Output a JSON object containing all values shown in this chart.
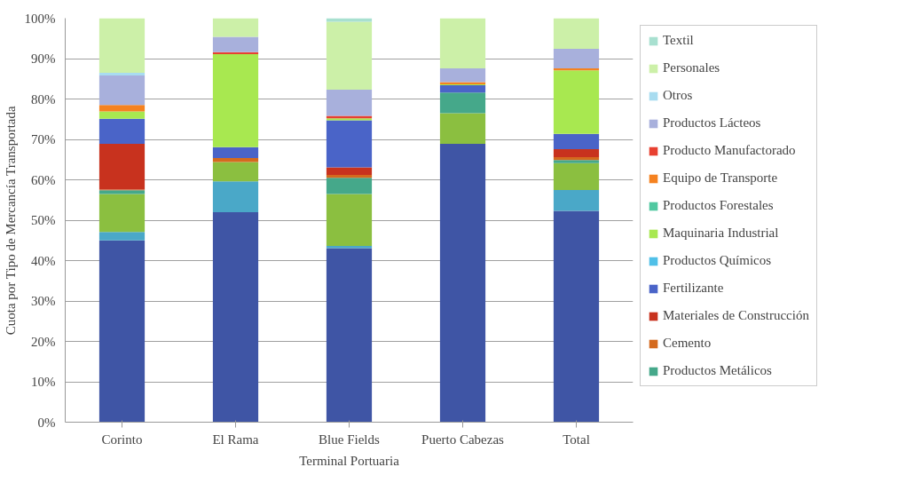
{
  "chart_data": {
    "type": "bar",
    "stacked": true,
    "xlabel": "Terminal Portuaria",
    "ylabel": "Cuota por Tipo de Mercancía Transportada",
    "categories": [
      "Corinto",
      "El Rama",
      "Blue Fields",
      "Puerto Cabezas",
      "Total"
    ],
    "ylim": [
      0,
      100
    ],
    "yticks": [
      {
        "value": 0,
        "label": "0%"
      },
      {
        "value": 10,
        "label": "10%"
      },
      {
        "value": 20,
        "label": "20%"
      },
      {
        "value": 30,
        "label": "30%"
      },
      {
        "value": 40,
        "label": "40%"
      },
      {
        "value": 50,
        "label": "50%"
      },
      {
        "value": 60,
        "label": "60%"
      },
      {
        "value": 70,
        "label": "70%"
      },
      {
        "value": 80,
        "label": "80%"
      },
      {
        "value": 90,
        "label": "90%"
      },
      {
        "value": 100,
        "label": "100%"
      }
    ],
    "grid": "y",
    "legend": "right",
    "series": [
      {
        "color": "#3f55a5",
        "values": [
          45.0,
          52.0,
          43.1,
          68.9,
          52.3
        ]
      },
      {
        "color": "#4aa8c8",
        "values": [
          2.1,
          7.6,
          0.5,
          0,
          5.2
        ]
      },
      {
        "color": "#8bbf40",
        "values": [
          9.4,
          4.8,
          12.9,
          7.6,
          6.6
        ]
      },
      {
        "name": "Productos Metálicos",
        "color": "#45a88a",
        "values": [
          0.9,
          0,
          4.0,
          5.1,
          0.8
        ]
      },
      {
        "name": "Cemento",
        "color": "#d46a1e",
        "values": [
          0.2,
          1.0,
          0.7,
          0,
          0.7
        ]
      },
      {
        "name": "Materiales de Construcción",
        "color": "#c8321e",
        "values": [
          11.3,
          0,
          1.9,
          0,
          2.0
        ]
      },
      {
        "name": "Fertilizante",
        "color": "#4a64c8",
        "values": [
          6.2,
          2.7,
          11.6,
          1.8,
          3.8
        ]
      },
      {
        "name": "Productos Químicos",
        "color": "#50c0e8",
        "values": [
          0,
          0,
          0,
          0,
          0
        ]
      },
      {
        "name": "Maquinaria Industrial",
        "color": "#a8e850",
        "values": [
          1.8,
          23.0,
          0.5,
          0.2,
          15.7
        ]
      },
      {
        "name": "Productos Forestales",
        "color": "#50c8a0",
        "values": [
          0,
          0,
          0,
          0,
          0
        ]
      },
      {
        "name": "Equipo de Transporte",
        "color": "#f58220",
        "values": [
          1.6,
          0,
          0,
          0.6,
          0.5
        ]
      },
      {
        "name": "Producto Manufactorado",
        "color": "#e84030",
        "values": [
          0,
          0.5,
          0.6,
          0,
          0
        ]
      },
      {
        "name": "Productos Lácteos",
        "color": "#a8b0dc",
        "values": [
          7.3,
          3.8,
          6.5,
          3.4,
          4.8
        ]
      },
      {
        "name": "Otros",
        "color": "#a8dcf0",
        "values": [
          0.7,
          0,
          0,
          0,
          0
        ]
      },
      {
        "name": "Personales",
        "color": "#ccf0a8",
        "values": [
          13.5,
          4.6,
          16.8,
          12.4,
          7.6
        ]
      },
      {
        "name": "Textil",
        "color": "#a8e0d0",
        "values": [
          0,
          0,
          0.9,
          0,
          0
        ]
      }
    ]
  }
}
